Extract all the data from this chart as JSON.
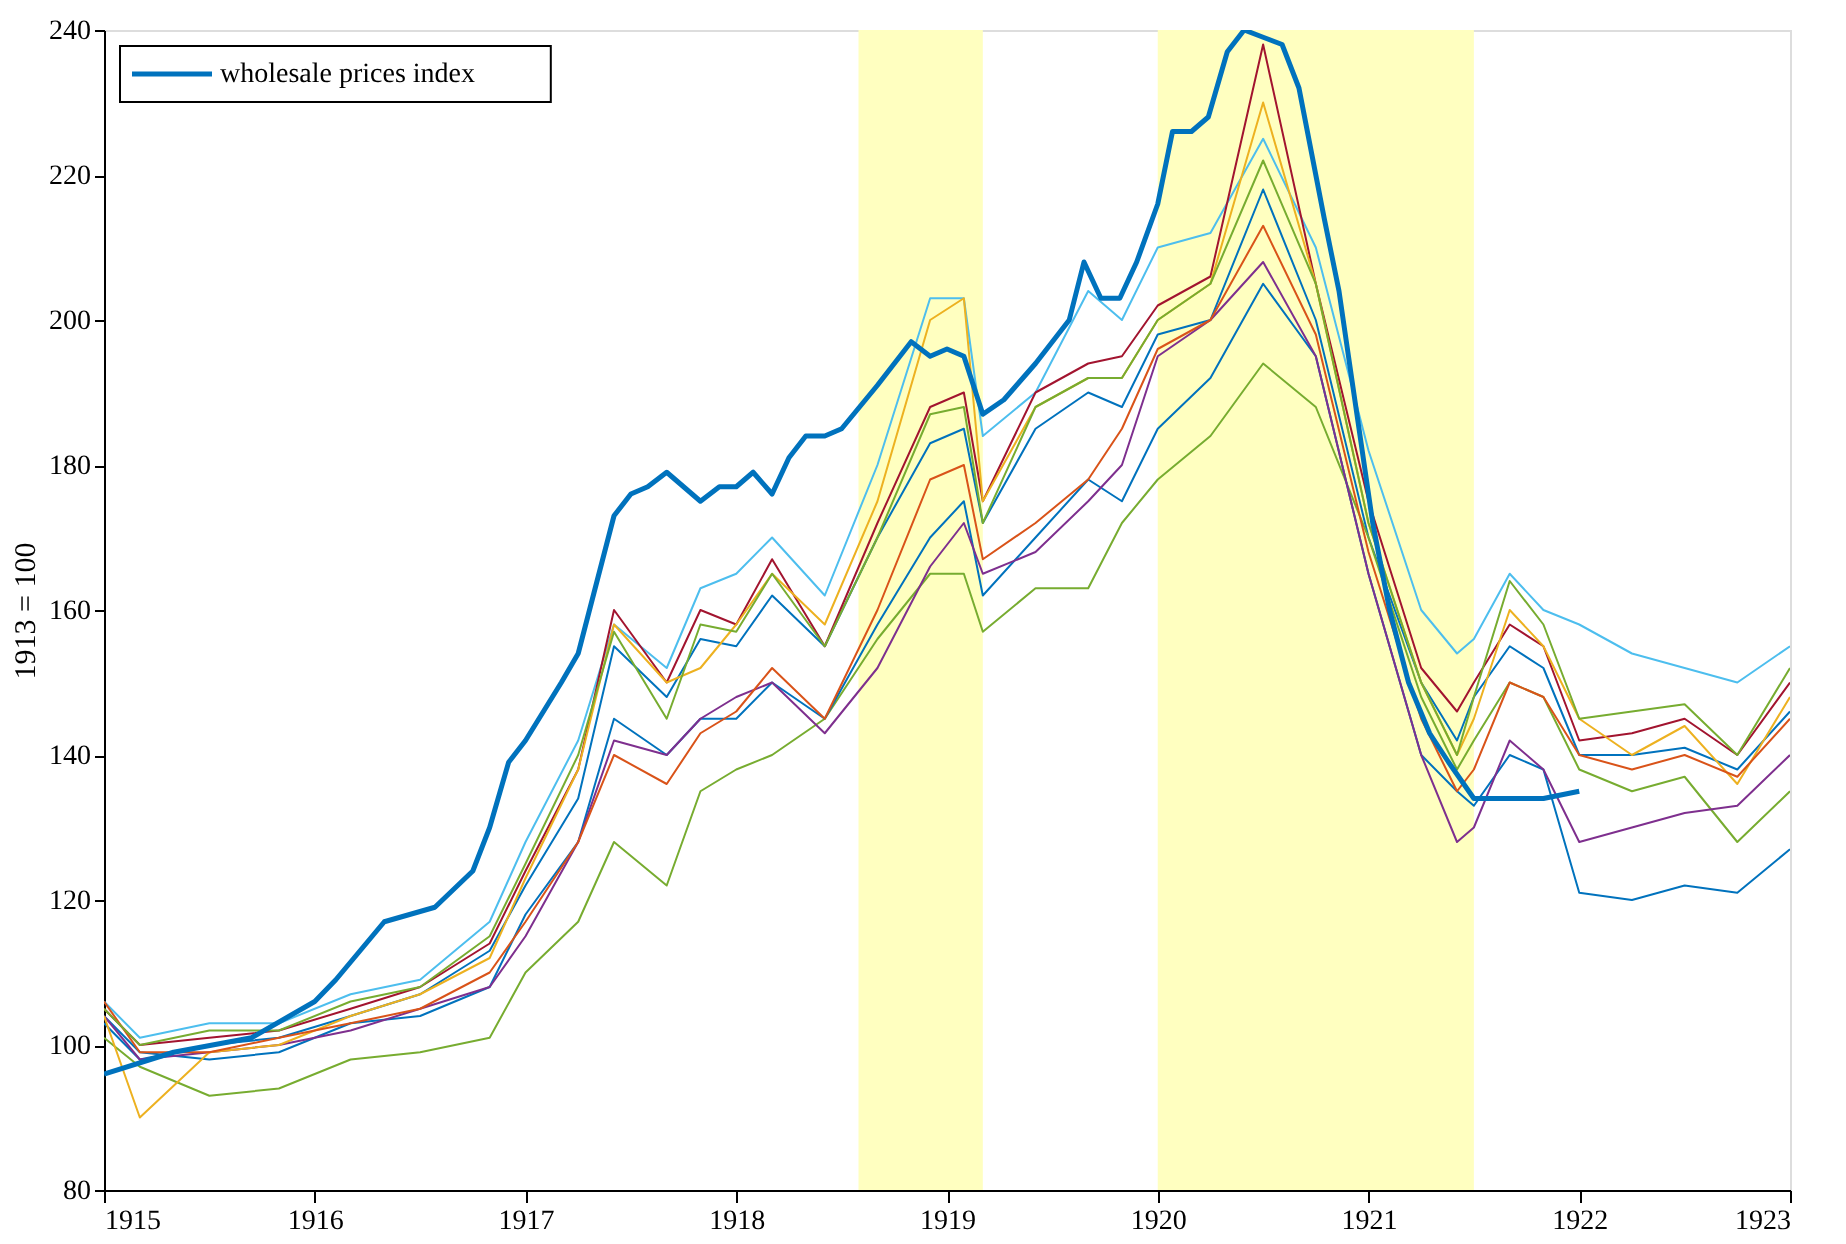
{
  "chart_data": {
    "type": "line",
    "ylabel": "1913 = 100",
    "x": [
      1915,
      1915.17,
      1915.5,
      1915.83,
      1916.17,
      1916.5,
      1916.83,
      1917.0,
      1917.25,
      1917.42,
      1917.67,
      1917.83,
      1918.0,
      1918.17,
      1918.42,
      1918.67,
      1918.92,
      1919.08,
      1919.17,
      1919.42,
      1919.67,
      1919.83,
      1920.0,
      1920.25,
      1920.5,
      1920.75,
      1921.0,
      1921.25,
      1921.42,
      1921.5,
      1921.67,
      1921.83,
      1922.0,
      1922.25,
      1922.5,
      1922.75,
      1923.0
    ],
    "series": [
      {
        "color": "#0072bd",
        "values": [
          103,
          98,
          100,
          101,
          104,
          107,
          113,
          122,
          134,
          155,
          148,
          156,
          155,
          162,
          155,
          170,
          183,
          185,
          172,
          185,
          190,
          188,
          198,
          200,
          218,
          200,
          170,
          150,
          142,
          148,
          155,
          152,
          140,
          140,
          141,
          138,
          146
        ]
      },
      {
        "color": "#77ac30",
        "values": [
          101,
          97,
          93,
          94,
          98,
          99,
          101,
          110,
          117,
          128,
          122,
          135,
          138,
          140,
          145,
          156,
          165,
          165,
          157,
          163,
          163,
          172,
          178,
          184,
          194,
          188,
          170,
          148,
          138,
          142,
          150,
          148,
          138,
          135,
          137,
          128,
          135
        ]
      },
      {
        "color": "#0072bd",
        "values": [
          104,
          99,
          98,
          99,
          103,
          104,
          108,
          118,
          128,
          145,
          140,
          145,
          145,
          150,
          145,
          158,
          170,
          175,
          162,
          170,
          178,
          175,
          185,
          192,
          205,
          195,
          165,
          140,
          135,
          133,
          140,
          138,
          121,
          120,
          122,
          121,
          127
        ]
      },
      {
        "color": "#4dbeee",
        "values": [
          106,
          101,
          103,
          103,
          107,
          109,
          117,
          128,
          142,
          158,
          152,
          163,
          165,
          170,
          162,
          180,
          203,
          203,
          184,
          190,
          204,
          200,
          210,
          212,
          225,
          210,
          182,
          160,
          154,
          156,
          165,
          160,
          158,
          154,
          152,
          150,
          155
        ]
      },
      {
        "color": "#a2142f",
        "values": [
          105,
          100,
          101,
          102,
          105,
          108,
          114,
          124,
          138,
          160,
          150,
          160,
          158,
          167,
          155,
          172,
          188,
          190,
          175,
          190,
          194,
          195,
          202,
          206,
          238,
          205,
          175,
          152,
          146,
          150,
          158,
          155,
          142,
          143,
          145,
          140,
          150
        ]
      },
      {
        "color": "#7e2f8e",
        "values": [
          104,
          98,
          99,
          100,
          102,
          105,
          108,
          115,
          128,
          142,
          140,
          145,
          148,
          150,
          143,
          152,
          166,
          172,
          165,
          168,
          175,
          180,
          195,
          200,
          208,
          195,
          165,
          140,
          128,
          130,
          142,
          138,
          128,
          130,
          132,
          133,
          140
        ]
      },
      {
        "color": "#edb120",
        "values": [
          104,
          90,
          99,
          100,
          104,
          107,
          112,
          123,
          138,
          158,
          150,
          152,
          158,
          165,
          158,
          175,
          200,
          203,
          175,
          188,
          192,
          192,
          200,
          205,
          230,
          205,
          172,
          150,
          140,
          145,
          160,
          155,
          145,
          140,
          144,
          136,
          148
        ]
      },
      {
        "color": "#d95319",
        "values": [
          106,
          99,
          99,
          101,
          103,
          105,
          110,
          117,
          128,
          140,
          136,
          143,
          146,
          152,
          145,
          160,
          178,
          180,
          167,
          172,
          178,
          185,
          196,
          200,
          213,
          198,
          168,
          145,
          135,
          138,
          150,
          148,
          140,
          138,
          140,
          137,
          145
        ]
      },
      {
        "color": "#77ac30",
        "values": [
          105,
          100,
          102,
          102,
          106,
          108,
          115,
          125,
          140,
          157,
          145,
          158,
          157,
          165,
          155,
          170,
          187,
          188,
          172,
          188,
          192,
          192,
          200,
          205,
          222,
          205,
          172,
          150,
          140,
          148,
          164,
          158,
          145,
          146,
          147,
          140,
          152
        ]
      },
      {
        "name": "wholesale prices index",
        "color": "#0072bd",
        "x": [
          1915.0,
          1915.33,
          1915.7,
          1916.0,
          1916.1,
          1916.33,
          1916.57,
          1916.75,
          1916.83,
          1916.92,
          1917.0,
          1917.17,
          1917.25,
          1917.42,
          1917.5,
          1917.58,
          1917.67,
          1917.83,
          1917.92,
          1918.0,
          1918.08,
          1918.17,
          1918.25,
          1918.33,
          1918.42,
          1918.5,
          1918.67,
          1918.75,
          1918.83,
          1918.92,
          1919.0,
          1919.08,
          1919.17,
          1919.27,
          1919.42,
          1919.58,
          1919.65,
          1919.73,
          1919.82,
          1919.9,
          1920.0,
          1920.07,
          1920.16,
          1920.24,
          1920.33,
          1920.41,
          1920.5,
          1920.59,
          1920.67,
          1920.73,
          1920.79,
          1920.86,
          1920.93,
          1921.02,
          1921.1,
          1921.19,
          1921.29,
          1921.38,
          1921.5,
          1921.67,
          1921.83,
          1922.0
        ],
        "values": [
          96,
          99,
          101,
          106,
          109,
          117,
          119,
          124,
          130,
          139,
          142,
          150,
          154,
          173,
          176,
          177,
          179,
          175,
          177,
          177,
          179,
          176,
          181,
          184,
          184,
          185,
          191,
          194,
          197,
          195,
          196,
          195,
          187,
          189,
          194,
          200,
          208,
          203,
          203,
          208,
          216,
          226,
          226,
          228,
          237,
          240,
          239,
          238,
          232,
          223,
          214,
          204,
          190,
          172,
          160,
          150,
          143,
          139,
          134,
          134,
          134,
          135
        ]
      }
    ],
    "xlim": [
      1915,
      1923
    ],
    "xticks": [
      1915,
      1916,
      1917,
      1918,
      1919,
      1920,
      1921,
      1922,
      1923
    ],
    "ylim": [
      80,
      240
    ],
    "yticks": [
      80,
      100,
      120,
      140,
      160,
      180,
      200,
      220,
      240
    ],
    "bands": [
      {
        "axis": "x",
        "from": 1918.58,
        "to": 1919.17,
        "color": "#ffffc0"
      },
      {
        "axis": "x",
        "from": 1920.0,
        "to": 1921.5,
        "color": "#ffffc0"
      }
    ],
    "grid": false,
    "legend": "top left"
  }
}
